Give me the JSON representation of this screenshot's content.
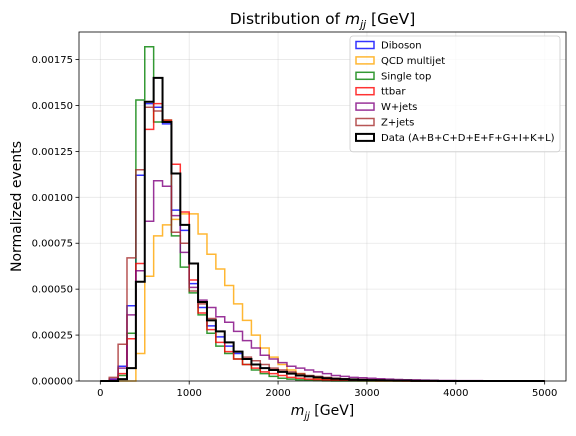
{
  "chart_data": {
    "type": "line",
    "style": "step-histogram",
    "title": "Distribution of $m_{jj}$ [GeV]",
    "xlabel": "$m_{jj}$ [GeV]",
    "ylabel": "Normalized events",
    "xlim": [
      -240,
      5240
    ],
    "ylim": [
      0,
      0.0019
    ],
    "grid": true,
    "legend_position": "top-right",
    "xticks": [
      0,
      1000,
      2000,
      3000,
      4000,
      5000
    ],
    "xtick_labels": [
      "0",
      "1000",
      "2000",
      "3000",
      "4000",
      "5000"
    ],
    "yticks": [
      0,
      0.00025,
      0.0005,
      0.00075,
      0.001,
      0.00125,
      0.0015,
      0.00175
    ],
    "ytick_labels": [
      "0.00000",
      "0.00025",
      "0.00050",
      "0.00075",
      "0.00100",
      "0.00125",
      "0.00150",
      "0.00175"
    ],
    "bin_edges": [
      0,
      100,
      200,
      300,
      400,
      500,
      600,
      700,
      800,
      900,
      1000,
      1100,
      1200,
      1300,
      1400,
      1500,
      1600,
      1700,
      1800,
      1900,
      2000,
      2100,
      2200,
      2300,
      2400,
      2500,
      2600,
      2700,
      2800,
      2900,
      3000,
      3100,
      3200,
      3300,
      3400,
      3500,
      3600,
      3700,
      3800,
      3900,
      4000,
      4100,
      4200,
      4300,
      4400,
      4500,
      4600,
      4700,
      4800,
      4900,
      5000
    ],
    "series": [
      {
        "name": "Diboson",
        "color": "#0000ff",
        "values": [
          0,
          1e-05,
          8e-05,
          0.00041,
          0.00112,
          0.00151,
          0.00149,
          0.0014,
          0.00093,
          0.00082,
          0.00053,
          0.0004,
          0.0003,
          0.00024,
          0.00019,
          0.00015,
          0.00012,
          9e-05,
          7e-05,
          6e-05,
          5e-05,
          4e-05,
          3e-05,
          2.5e-05,
          2e-05,
          1.5e-05,
          1.2e-05,
          1e-05,
          8e-06,
          6e-06,
          5e-06,
          4e-06,
          3e-06,
          3e-06,
          2e-06,
          2e-06,
          2e-06,
          1e-06,
          1e-06,
          1e-06,
          1e-06,
          0,
          0,
          0,
          0,
          0,
          0,
          0,
          0,
          0
        ]
      },
      {
        "name": "QCD multijet",
        "color": "#ffa500",
        "values": [
          0,
          0,
          0,
          0,
          0.00015,
          0.00057,
          0.00079,
          0.00085,
          0.00088,
          0.00091,
          0.00091,
          0.0008,
          0.00069,
          0.00061,
          0.00052,
          0.00042,
          0.00033,
          0.00025,
          0.00018,
          0.00013,
          9e-05,
          6e-05,
          4e-05,
          2.5e-05,
          1.5e-05,
          1e-05,
          6e-06,
          4e-06,
          2e-06,
          1e-06,
          0,
          0,
          0,
          0,
          0,
          0,
          0,
          0,
          0,
          0,
          0,
          0,
          0,
          0,
          0,
          0,
          0,
          0,
          0,
          0
        ]
      },
      {
        "name": "Single top",
        "color": "#008000",
        "values": [
          0,
          0,
          3e-05,
          0.00026,
          0.00153,
          0.00182,
          0.00141,
          0.00142,
          0.00079,
          0.00062,
          0.00048,
          0.00036,
          0.00026,
          0.00019,
          0.00015,
          0.00012,
          9e-05,
          6e-05,
          4e-05,
          2.5e-05,
          1.5e-05,
          1e-05,
          6e-06,
          4e-06,
          2e-06,
          1e-06,
          0,
          0,
          0,
          0,
          0,
          0,
          0,
          0,
          0,
          0,
          0,
          0,
          0,
          0,
          0,
          0,
          0,
          0,
          0,
          0,
          0,
          0,
          0,
          0
        ]
      },
      {
        "name": "ttbar",
        "color": "#ff0000",
        "values": [
          0,
          0,
          4e-05,
          0.00023,
          0.00064,
          0.00137,
          0.00151,
          0.00142,
          0.00118,
          0.00092,
          0.00055,
          0.00037,
          0.00028,
          0.00021,
          0.00016,
          0.00012,
          9e-05,
          7e-05,
          5e-05,
          4e-05,
          3e-05,
          2e-05,
          1.5e-05,
          1e-05,
          8e-06,
          6e-06,
          5e-06,
          4e-06,
          3e-06,
          2e-06,
          2e-06,
          1e-06,
          1e-06,
          1e-06,
          0,
          0,
          0,
          0,
          0,
          0,
          0,
          0,
          0,
          0,
          0,
          0,
          0,
          0,
          0,
          0
        ]
      },
      {
        "name": "W+jets",
        "color": "#800080",
        "values": [
          0,
          1e-05,
          7e-05,
          0.00036,
          0.0006,
          0.00087,
          0.00109,
          0.00106,
          0.0009,
          0.0007,
          0.00051,
          0.00044,
          0.0004,
          0.00035,
          0.00032,
          0.00027,
          0.00022,
          0.00018,
          0.00014,
          0.00012,
          0.0001,
          8e-05,
          7e-05,
          6e-05,
          5e-05,
          4e-05,
          3e-05,
          2.5e-05,
          2e-05,
          1.8e-05,
          1.5e-05,
          1.2e-05,
          1e-05,
          8e-06,
          7e-06,
          6e-06,
          5e-06,
          4e-06,
          3e-06,
          3e-06,
          2e-06,
          2e-06,
          2e-06,
          1e-06,
          1e-06,
          1e-06,
          1e-06,
          0,
          0,
          0
        ]
      },
      {
        "name": "Z+jets",
        "color": "#a52a2a",
        "values": [
          0,
          2e-05,
          0.0002,
          0.00067,
          0.00115,
          0.00149,
          0.00147,
          0.00141,
          0.00081,
          0.00075,
          0.00049,
          0.00042,
          0.00034,
          0.00027,
          0.00021,
          0.00016,
          0.00013,
          0.00011,
          9e-05,
          7e-05,
          6e-05,
          5e-05,
          4e-05,
          3e-05,
          2.5e-05,
          2e-05,
          1.5e-05,
          1.2e-05,
          1e-05,
          8e-06,
          6e-06,
          5e-06,
          4e-06,
          3e-06,
          2e-06,
          2e-06,
          1e-06,
          1e-06,
          1e-06,
          0,
          0,
          0,
          0,
          0,
          0,
          0,
          0,
          0,
          0,
          0
        ]
      },
      {
        "name": "Data (A+B+C+D+E+F+G+I+K+L)",
        "color": "#000000",
        "values": [
          0,
          0,
          1e-05,
          7e-05,
          0.00054,
          0.00152,
          0.00165,
          0.00141,
          0.00113,
          0.00085,
          0.00064,
          0.00043,
          0.00033,
          0.00027,
          0.00021,
          0.00016,
          0.00012,
          9e-05,
          7e-05,
          6e-05,
          5e-05,
          4e-05,
          3e-05,
          2.5e-05,
          2e-05,
          1.5e-05,
          1.2e-05,
          1e-05,
          8e-06,
          6e-06,
          5e-06,
          4e-06,
          3e-06,
          2e-06,
          2e-06,
          1e-06,
          1e-06,
          1e-06,
          0,
          0,
          0,
          0,
          0,
          0,
          0,
          0,
          0,
          0,
          0,
          0
        ]
      }
    ]
  }
}
